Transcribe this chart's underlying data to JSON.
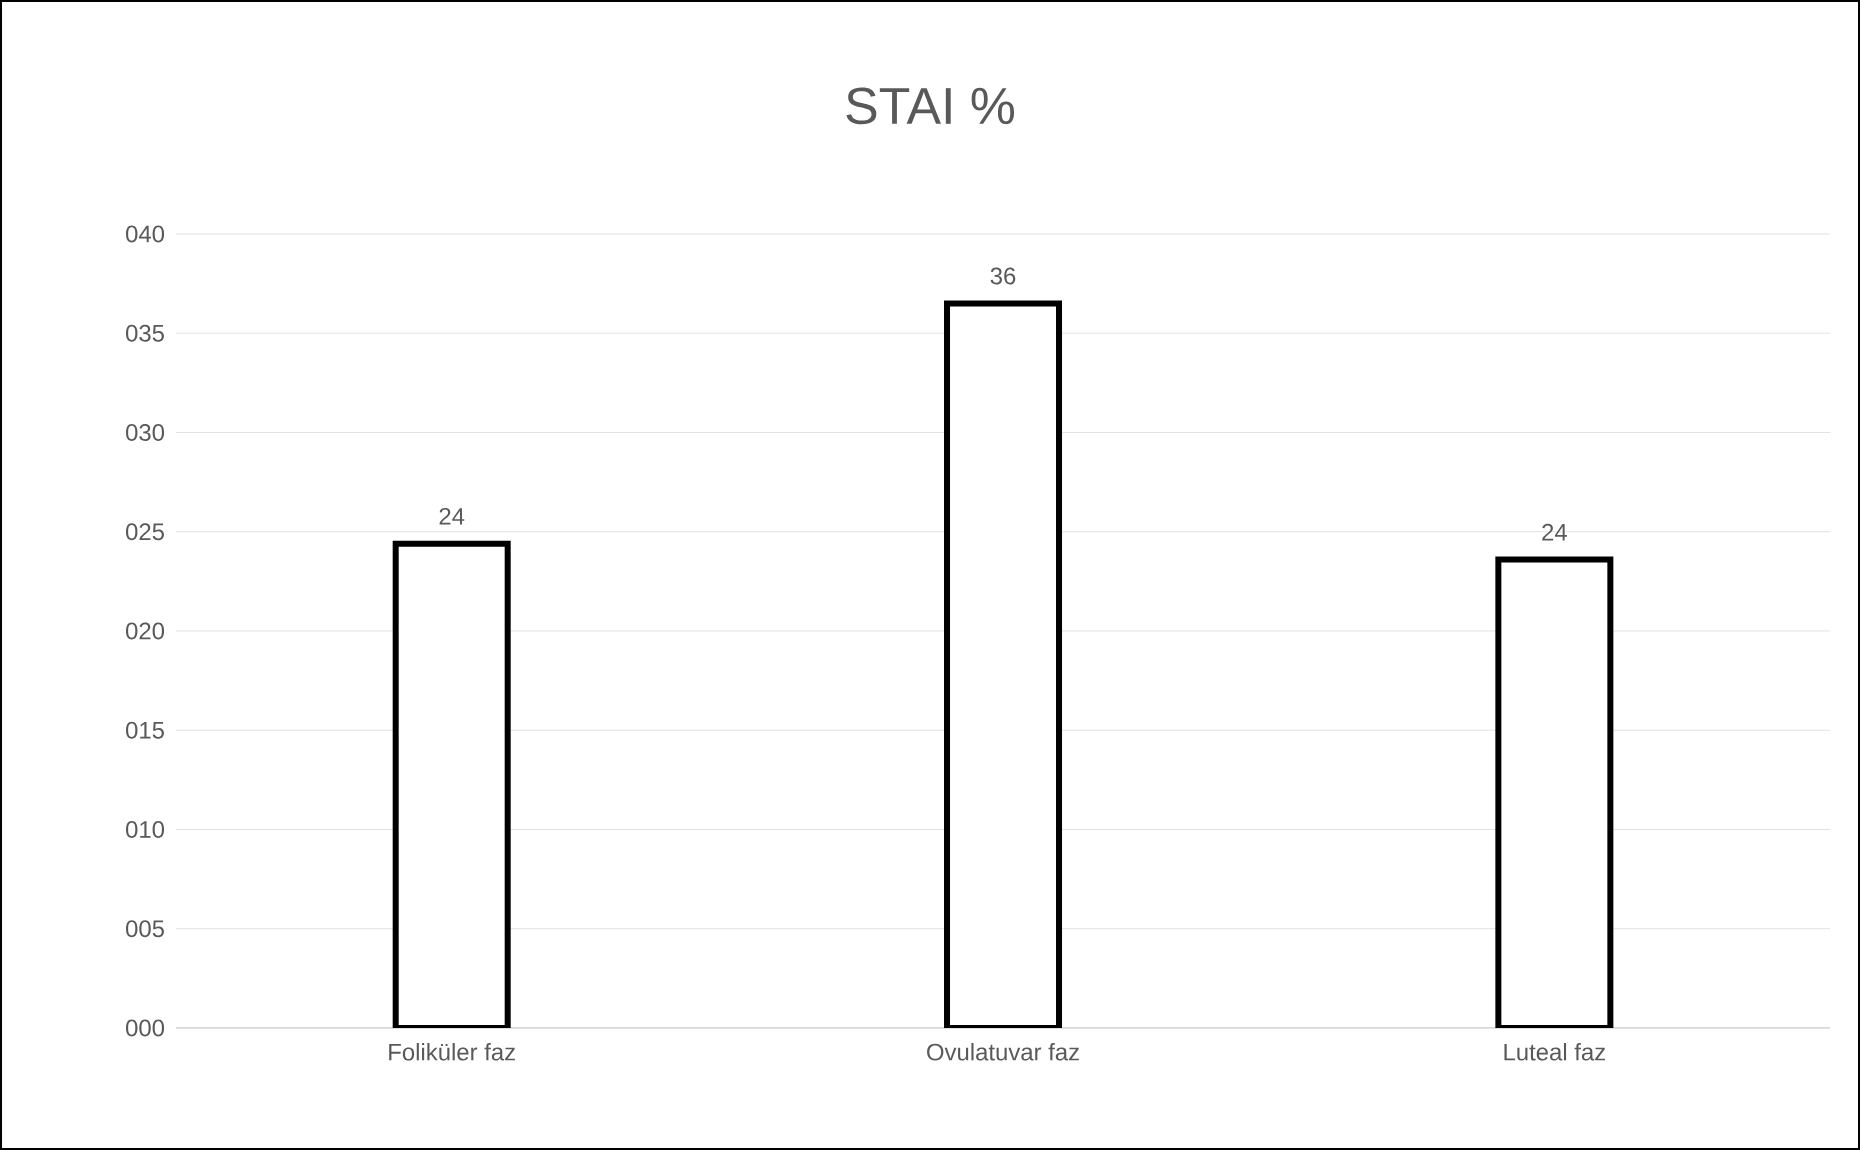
{
  "chart_data": {
    "type": "bar",
    "title": "STAI %",
    "categories": [
      "Foliküler faz",
      "Ovulatuvar faz",
      "Luteal faz"
    ],
    "values": [
      24.4,
      36.5,
      23.6
    ],
    "value_labels": [
      "24",
      "36",
      "24"
    ],
    "color": "#ffffff",
    "ylim": [
      0,
      40
    ],
    "yticks": [
      {
        "value": 0,
        "label": "000"
      },
      {
        "value": 5,
        "label": "005"
      },
      {
        "value": 10,
        "label": "010"
      },
      {
        "value": 15,
        "label": "015"
      },
      {
        "value": 20,
        "label": "020"
      },
      {
        "value": 25,
        "label": "025"
      },
      {
        "value": 30,
        "label": "030"
      },
      {
        "value": 35,
        "label": "035"
      },
      {
        "value": 40,
        "label": "040"
      }
    ],
    "grid": "y"
  }
}
